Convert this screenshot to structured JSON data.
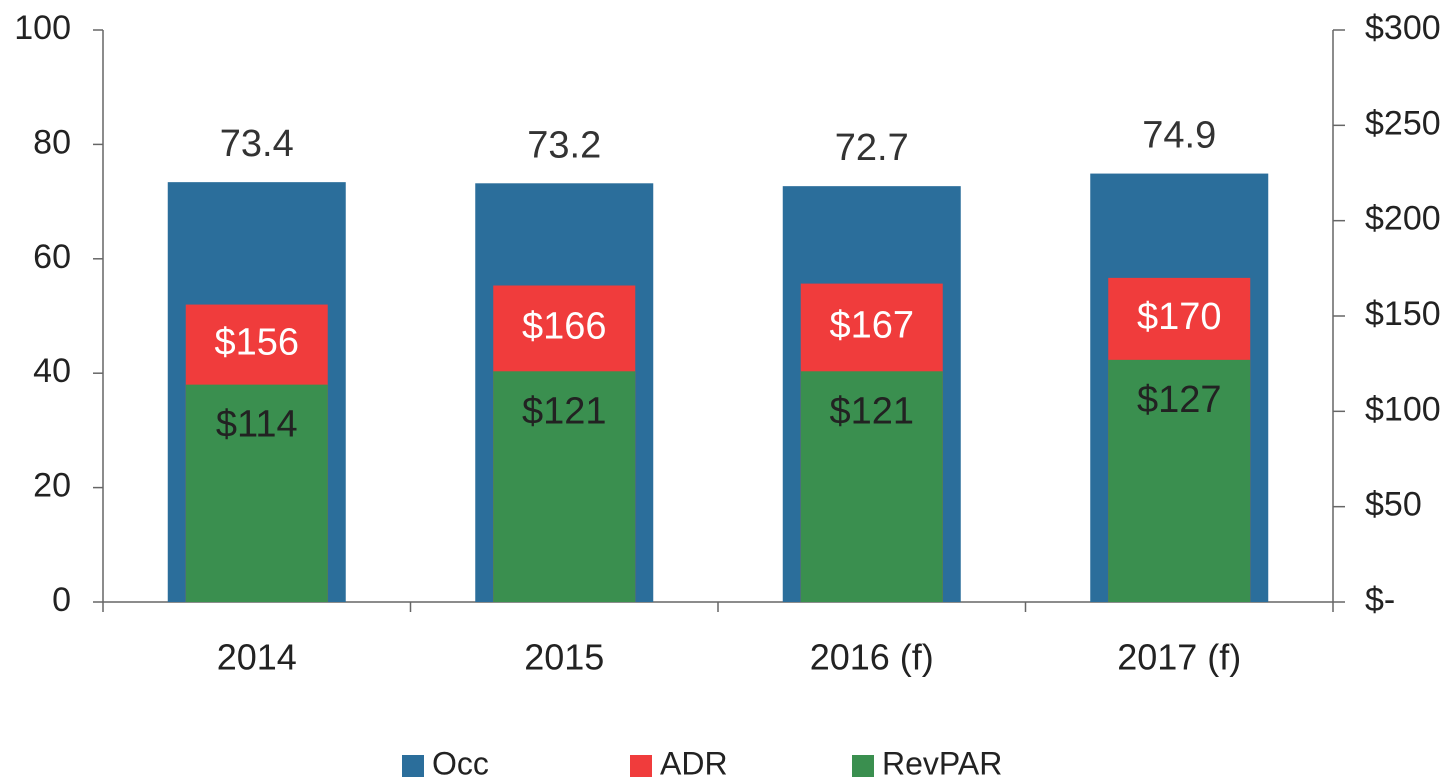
{
  "chart_data": {
    "type": "bar",
    "categories": [
      "2014",
      "2015",
      "2016 (f)",
      "2017 (f)"
    ],
    "series": [
      {
        "name": "Occ",
        "color": "#2b6e9b",
        "values": [
          73.4,
          73.2,
          72.7,
          74.9
        ]
      },
      {
        "name": "ADR",
        "color": "#f03c3c",
        "axis": "y2",
        "values": [
          156,
          166,
          167,
          170
        ],
        "value_labels": [
          "$156",
          "$166",
          "$167",
          "$170"
        ]
      },
      {
        "name": "RevPAR",
        "color": "#3a8f4f",
        "axis": "y2",
        "values": [
          114,
          121,
          121,
          127
        ],
        "value_labels": [
          "$114",
          "$121",
          "$121",
          "$127"
        ]
      }
    ],
    "ylim": [
      0,
      100
    ],
    "yticks": [
      0,
      20,
      40,
      60,
      80,
      100
    ],
    "y2lim": [
      0,
      300
    ],
    "y2ticks": [
      {
        "value": 0,
        "label": "$-"
      },
      {
        "value": 50,
        "label": "$50"
      },
      {
        "value": 100,
        "label": "$100"
      },
      {
        "value": 150,
        "label": "$150"
      },
      {
        "value": 200,
        "label": "$200"
      },
      {
        "value": 250,
        "label": "$250"
      },
      {
        "value": 300,
        "label": "$300"
      }
    ],
    "legend": "bottom"
  }
}
